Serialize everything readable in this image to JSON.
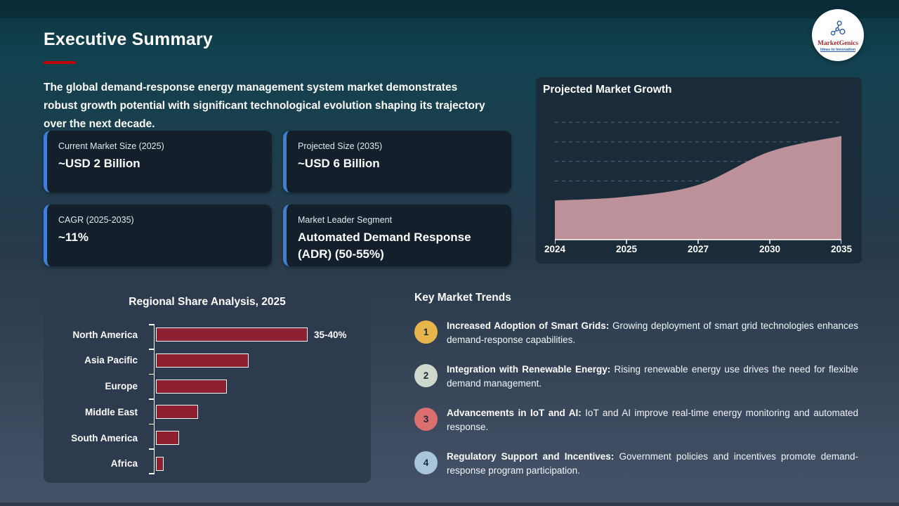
{
  "slide": {
    "title": "Executive Summary",
    "accent_color": "#c00000",
    "intro_lines": [
      "The global demand-response energy management system market demonstrates",
      "robust growth potential with significant technological evolution shaping its trajectory",
      "over the next decade."
    ]
  },
  "logo": {
    "brand": "MarketGenics",
    "tagline": "Ideas to Innovation",
    "icon": "molecule-icon",
    "icon_color": "#2a5ca8"
  },
  "stats": [
    {
      "label": "Current Market Size (2025)",
      "value": "~USD 2 Billion"
    },
    {
      "label": "Projected Size (2035)",
      "value": "~USD 6 Billion"
    },
    {
      "label": "CAGR (2025-2035)",
      "value": "~11%"
    },
    {
      "label": "Market Leader Segment",
      "value": "Automated Demand Response (ADR) (50-55%)"
    }
  ],
  "chart_data": [
    {
      "type": "area",
      "title": "Projected Market Growth",
      "x": [
        "2024",
        "2025",
        "2027",
        "2030",
        "2035"
      ],
      "values": [
        2.0,
        2.2,
        2.8,
        4.5,
        5.3
      ],
      "ylabel": "",
      "xlabel": "",
      "ylim": [
        0,
        6.5
      ],
      "gridline_values": [
        3,
        4,
        5,
        6
      ],
      "grid": "dashed-horizontal",
      "legend": "none",
      "area_color": "#bd9199",
      "axis_color": "#ffffff",
      "gridline_color": "#9fb2c1"
    },
    {
      "type": "bar",
      "orientation": "horizontal",
      "title": "Regional Share Analysis, 2025",
      "categories": [
        "North America",
        "Asia Pacific",
        "Europe",
        "Middle East",
        "South America",
        "Africa"
      ],
      "values": [
        37.5,
        23,
        17.5,
        10.5,
        5.7,
        1.9
      ],
      "data_labels": [
        "35-40%",
        "",
        "",
        "",
        "",
        ""
      ],
      "xlim": [
        0,
        50
      ],
      "grid": "off",
      "legend": "none",
      "bar_color": "#8e1f2f",
      "bar_border_color": "#ffffff"
    }
  ],
  "trends": {
    "title": "Key Market Trends",
    "items": [
      {
        "num": "1",
        "badge_color": "#e7b54c",
        "lead": "Increased Adoption of Smart Grids:",
        "text": "Growing deployment of smart grid technologies enhances demand-response capabilities."
      },
      {
        "num": "2",
        "badge_color": "#cfd8cc",
        "lead": "Integration with Renewable Energy:",
        "text": "Rising renewable energy use drives the need for flexible demand management."
      },
      {
        "num": "3",
        "badge_color": "#da6f6d",
        "lead": "Advancements in IoT and AI:",
        "text": "IoT and AI improve real-time energy monitoring and automated response."
      },
      {
        "num": "4",
        "badge_color": "#a9c5db",
        "lead": "Regulatory Support and Incentives:",
        "text": "Government policies and incentives promote demand-response program participation."
      }
    ]
  }
}
